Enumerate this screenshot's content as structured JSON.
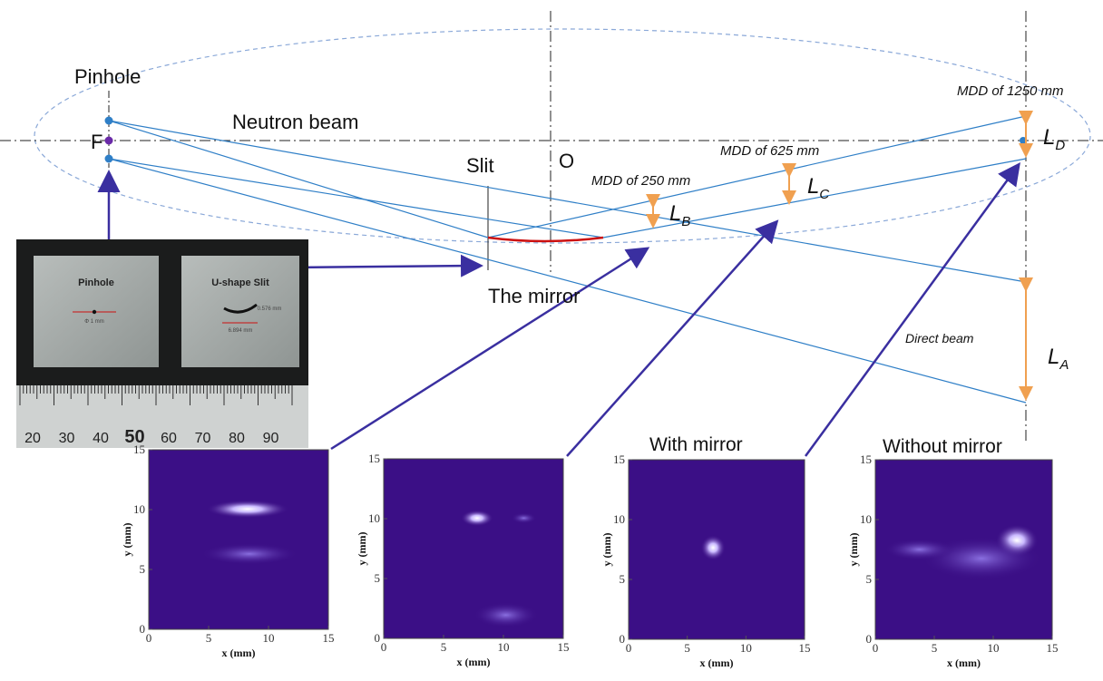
{
  "labels": {
    "pinhole": "Pinhole",
    "f": "F",
    "neutron_beam": "Neutron beam",
    "slit": "Slit",
    "o": "O",
    "mirror": "The mirror",
    "mdd_250": "MDD of 250 mm",
    "mdd_625": "MDD of 625 mm",
    "mdd_1250": "MDD of 1250 mm",
    "direct_beam": "Direct beam",
    "l_a": "L",
    "l_a_sub": "A",
    "l_b": "L",
    "l_b_sub": "B",
    "l_c": "L",
    "l_c_sub": "C",
    "l_d": "L",
    "l_d_sub": "D"
  },
  "photo": {
    "pinhole_plate": "Pinhole",
    "pinhole_dim": "Φ 1 mm",
    "slit_plate": "U-shape Slit",
    "slit_width": "6.894 mm",
    "slit_gap": "0.576 mm",
    "ruler_numbers": [
      "20",
      "30",
      "40",
      "50",
      "60",
      "70",
      "80",
      "90"
    ]
  },
  "plots": [
    {
      "caption": "",
      "xlabel": "x (mm)",
      "ylabel": "y (mm)",
      "xticks": [
        "0",
        "5",
        "10",
        "15"
      ],
      "yticks": [
        "0",
        "5",
        "10",
        "15"
      ]
    },
    {
      "caption": "",
      "xlabel": "x (mm)",
      "ylabel": "y (mm)",
      "xticks": [
        "0",
        "5",
        "10",
        "15"
      ],
      "yticks": [
        "0",
        "5",
        "10",
        "15"
      ]
    },
    {
      "caption": "With mirror",
      "xlabel": "x (mm)",
      "ylabel": "y (mm)",
      "xticks": [
        "0",
        "5",
        "10",
        "15"
      ],
      "yticks": [
        "0",
        "5",
        "10",
        "15"
      ]
    },
    {
      "caption": "Without mirror",
      "xlabel": "x (mm)",
      "ylabel": "y (mm)",
      "xticks": [
        "0",
        "5",
        "10",
        "15"
      ],
      "yticks": [
        "0",
        "5",
        "10",
        "15"
      ]
    }
  ],
  "colors": {
    "beam": "#2f7fc7",
    "arrow_blue": "#3a2fa0",
    "orange": "#f0a050",
    "mirror_red": "#cc1111",
    "plot_bg": "#3b0f86",
    "ellipse": "#8aa8d8"
  }
}
